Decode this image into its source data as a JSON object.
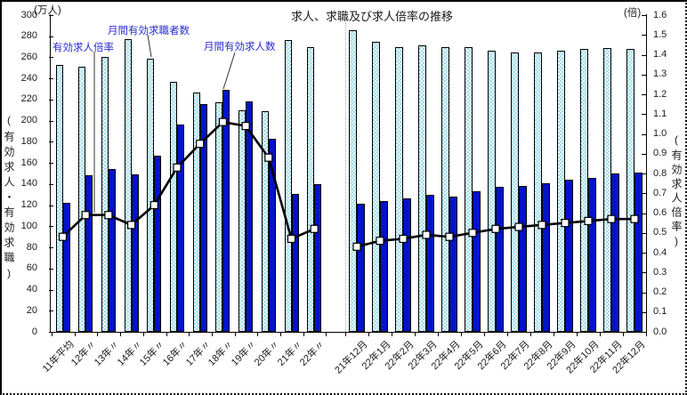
{
  "chart_data": {
    "type": "bar+line",
    "title": "求人、求職及び求人倍率の推移",
    "left_axis": {
      "unit": "(万人)",
      "label": "(有効求人・有効求職)",
      "min": 0,
      "max": 300,
      "step": 20
    },
    "right_axis": {
      "unit": "(倍)",
      "label": "(有効求人倍率)",
      "min": 0.0,
      "max": 1.6,
      "step": 0.1
    },
    "series_labels": {
      "ratio": "有効求人倍率",
      "seekers": "月間有効求職者数",
      "openings": "月間有効求人数"
    },
    "legend_position": "annotations-inside-plot",
    "grid": false,
    "groups": [
      {
        "name": "annual",
        "categories": [
          "11年平均",
          "12年〃",
          "13年〃",
          "14年〃",
          "15年〃",
          "16年〃",
          "17年〃",
          "18年〃",
          "19年〃",
          "20年〃",
          "21年〃",
          "22年〃"
        ],
        "series": [
          {
            "name": "月間有効求職者数",
            "axis": "left",
            "values": [
              253,
              251,
              260,
              277,
              259,
              237,
              227,
              217,
              210,
              209,
              276,
              270
            ]
          },
          {
            "name": "月間有効求人数",
            "axis": "left",
            "values": [
              122,
              148,
              154,
              149,
              167,
              196,
              216,
              229,
              218,
              183,
              131,
              140
            ]
          },
          {
            "name": "有効求人倍率",
            "axis": "right",
            "values": [
              0.48,
              0.59,
              0.59,
              0.54,
              0.64,
              0.83,
              0.95,
              1.06,
              1.04,
              0.88,
              0.47,
              0.52
            ]
          }
        ]
      },
      {
        "name": "monthly",
        "categories": [
          "21年12月",
          "22年1月",
          "22年2月",
          "22年3月",
          "22年4月",
          "22年5月",
          "22年6月",
          "22年7月",
          "22年8月",
          "22年9月",
          "22年10月",
          "22年11月",
          "22年12月"
        ],
        "series": [
          {
            "name": "月間有効求職者数",
            "axis": "left",
            "values": [
              286,
              275,
              270,
              271,
              270,
              270,
              266,
              265,
              265,
              266,
              268,
              269,
              268
            ]
          },
          {
            "name": "月間有効求人数",
            "axis": "left",
            "values": [
              121,
              124,
              126,
              130,
              128,
              133,
              137,
              138,
              141,
              144,
              146,
              150,
              151
            ]
          },
          {
            "name": "有効求人倍率",
            "axis": "right",
            "values": [
              0.43,
              0.46,
              0.47,
              0.49,
              0.48,
              0.5,
              0.52,
              0.53,
              0.54,
              0.55,
              0.56,
              0.57,
              0.57
            ]
          }
        ]
      }
    ],
    "colors": {
      "seekers_bar": "#9fdce9",
      "openings_bar": "#0013cc",
      "ratio_line": "#000000",
      "marker_fill": "#ffffff",
      "annotation_text": "#2a2ad0"
    }
  }
}
